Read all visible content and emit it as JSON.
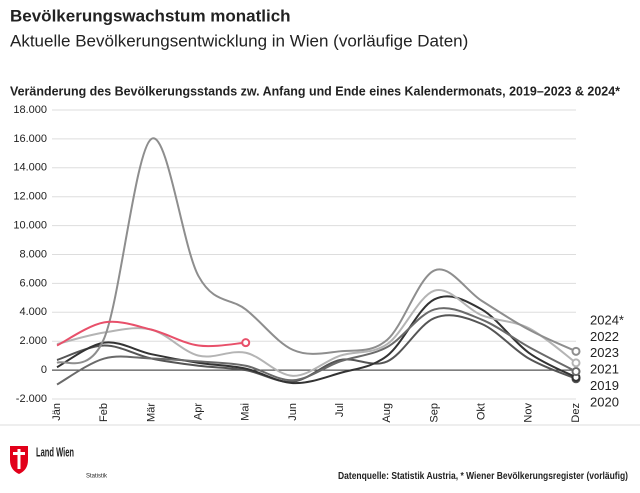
{
  "chart_data": {
    "type": "line",
    "title": "Bevölkerungswachstum monatlich",
    "subtitle": "Aktuelle Bevölkerungsentwicklung in Wien (vorläufige Daten)",
    "chart_title": "Veränderung des Bevölkerungsstands zw. Anfang und Ende eines Kalendermonats, 2019–2023 & 2024*",
    "categories": [
      "Jän",
      "Feb",
      "Mär",
      "Apr",
      "Mai",
      "Jun",
      "Jul",
      "Aug",
      "Sep",
      "Okt",
      "Nov",
      "Dez"
    ],
    "series": [
      {
        "name": "2024*",
        "color": "#e8506a",
        "values": [
          1700,
          3300,
          2800,
          1700,
          1900,
          null,
          null,
          null,
          null,
          null,
          null,
          null
        ]
      },
      {
        "name": "2022",
        "color": "#8e8e8e",
        "values": [
          500,
          2200,
          16000,
          6500,
          4200,
          1400,
          1300,
          2100,
          6900,
          4800,
          2800,
          1300
        ]
      },
      {
        "name": "2023",
        "color": "#b4b4b4",
        "values": [
          1800,
          2600,
          2800,
          1000,
          1200,
          -400,
          1000,
          1800,
          5500,
          3800,
          2900,
          500
        ]
      },
      {
        "name": "2021",
        "color": "#6a6a6a",
        "values": [
          -1000,
          800,
          800,
          600,
          300,
          -700,
          600,
          1600,
          4200,
          3500,
          1600,
          -100
        ]
      },
      {
        "name": "2019",
        "color": "#333333",
        "values": [
          200,
          1900,
          1100,
          500,
          100,
          -900,
          -200,
          1000,
          4900,
          4200,
          1200,
          -500
        ]
      },
      {
        "name": "2020",
        "color": "#555555",
        "values": [
          700,
          1700,
          800,
          300,
          0,
          -800,
          700,
          600,
          3600,
          3200,
          800,
          -600
        ]
      }
    ],
    "ylim": [
      -2000,
      18000
    ],
    "yticks": [
      {
        "value": -2000,
        "label": "-2.000"
      },
      0,
      {
        "value": 2000,
        "label": "2.000"
      },
      {
        "value": 4000,
        "label": "4.000"
      },
      {
        "value": 6000,
        "label": "6.000"
      },
      {
        "value": 8000,
        "label": "8.000"
      },
      {
        "value": 10000,
        "label": "10.000"
      },
      {
        "value": 12000,
        "label": "12.000"
      },
      {
        "value": 14000,
        "label": "14.000"
      },
      {
        "value": 16000,
        "label": "16.000"
      },
      {
        "value": 18000,
        "label": "18.000"
      }
    ],
    "grid": true,
    "logo": "Land Wien",
    "logo_sub": "Statistik",
    "source": "Datenquelle: Statistik Austria, * Wiener Bevölkerungsregister (vorläufig)"
  }
}
